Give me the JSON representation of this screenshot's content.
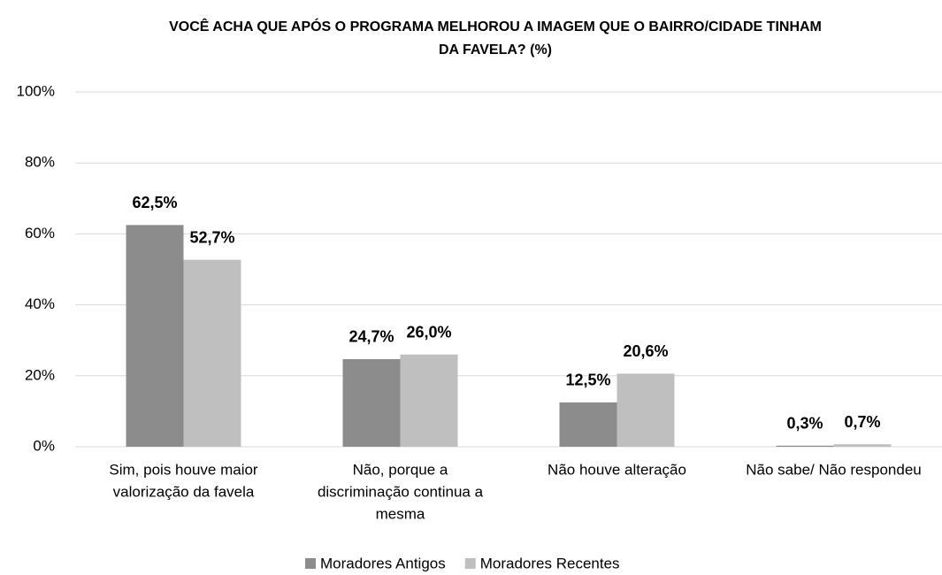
{
  "chart_data": {
    "type": "bar",
    "title": [
      "VOCÊ ACHA QUE APÓS O PROGRAMA MELHOROU A IMAGEM QUE O BAIRRO/CIDADE TINHAM",
      "DA FAVELA? (%)"
    ],
    "categories": [
      [
        "Sim, pois houve maior",
        "valorização da favela"
      ],
      [
        "Não, porque a",
        "discriminação continua a",
        "mesma"
      ],
      [
        "Não houve alteração"
      ],
      [
        "Não sabe/ Não respondeu"
      ]
    ],
    "series": [
      {
        "name": "Moradores Antigos",
        "color": "#8c8c8c",
        "values": [
          62.5,
          24.7,
          12.5,
          0.3
        ],
        "value_labels": [
          "62,5%",
          "24,7%",
          "12,5%",
          "0,3%"
        ]
      },
      {
        "name": "Moradores Recentes",
        "color": "#bfbfbf",
        "values": [
          52.7,
          26.0,
          20.6,
          0.7
        ],
        "value_labels": [
          "52,7%",
          "26,0%",
          "20,6%",
          "0,7%"
        ]
      }
    ],
    "ylim": [
      0,
      100
    ],
    "yticks": [
      {
        "value": 0,
        "label": "0%"
      },
      {
        "value": 20,
        "label": "20%"
      },
      {
        "value": 40,
        "label": "40%"
      },
      {
        "value": 60,
        "label": "60%"
      },
      {
        "value": 80,
        "label": "80%"
      },
      {
        "value": 100,
        "label": "100%"
      }
    ],
    "grid": true,
    "legend": "bottom"
  }
}
